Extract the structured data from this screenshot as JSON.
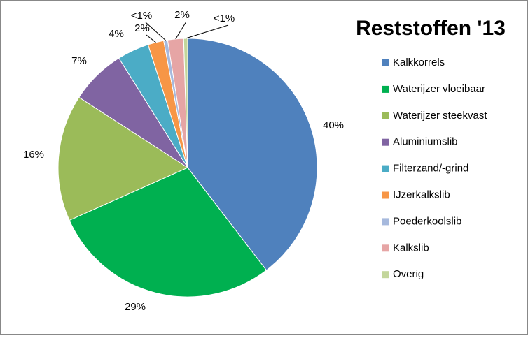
{
  "chart_data": {
    "type": "pie",
    "title": "Reststoffen '13",
    "categories": [
      "Kalkkorrels",
      "Waterijzer vloeibaar",
      "Waterijzer steekvast",
      "Aluminiumslib",
      "Filterzand/-grind",
      "IJzerkalkslib",
      "Poederkoolslib",
      "Kalkslib",
      "Overig"
    ],
    "values": [
      40,
      29,
      16,
      7,
      4,
      2,
      0.5,
      2,
      0.5
    ],
    "value_labels": [
      "40%",
      "29%",
      "16%",
      "7%",
      "4%",
      "2%",
      "<1%",
      "2%",
      "<1%"
    ],
    "colors": [
      "#4f81bd",
      "#00b050",
      "#9bbb59",
      "#8064a2",
      "#4bacc6",
      "#f79646",
      "#a6b9dd",
      "#e6a5a5",
      "#c3d69b"
    ],
    "legend": "right"
  }
}
